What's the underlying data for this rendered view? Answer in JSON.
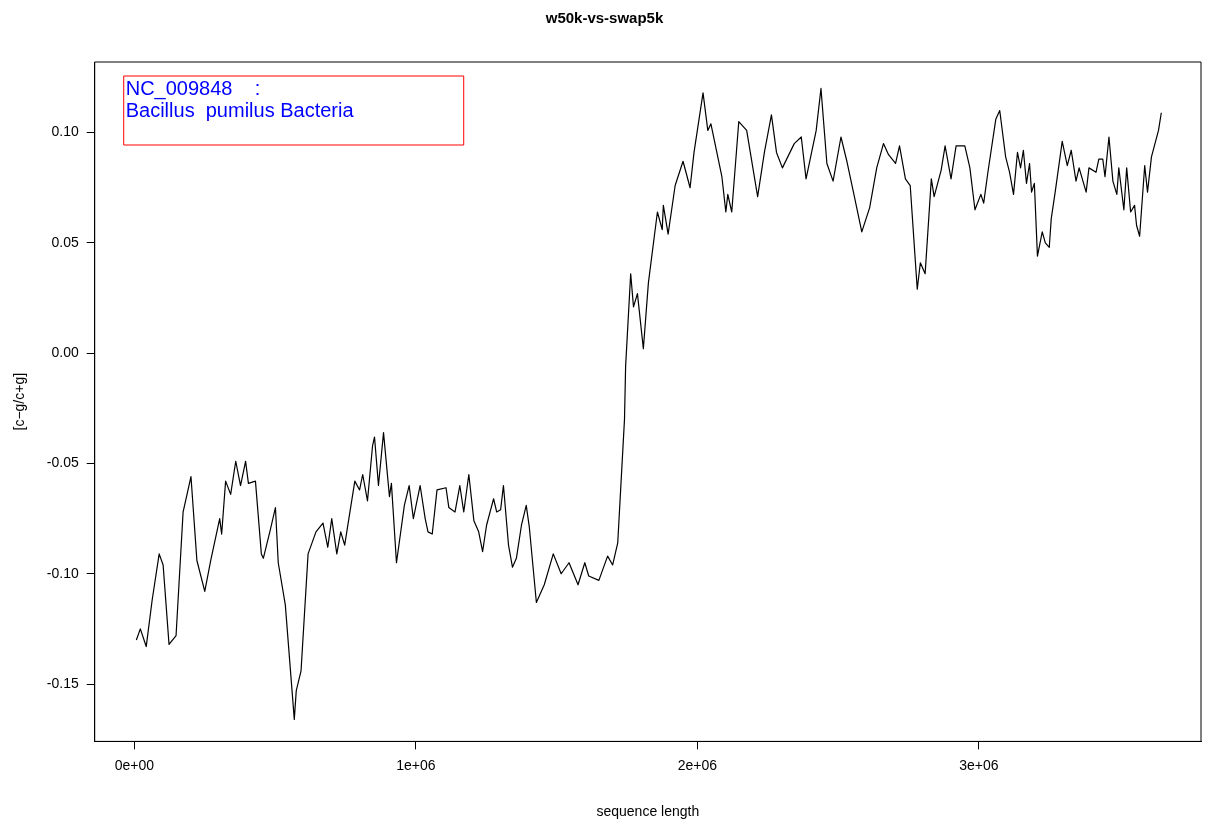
{
  "chart_data": {
    "type": "line",
    "title": "w50k-vs-swap5k",
    "xlabel": "sequence length",
    "ylabel": "[c−g/c+g]",
    "annotations": [
      "NC_009848    :",
      "Bacillus  pumilus Bacteria"
    ],
    "xlim": [
      -141000,
      3789000
    ],
    "ylim": [
      -0.176,
      0.132
    ],
    "xticks": [
      {
        "value": 0,
        "label": "0e+00"
      },
      {
        "value": 1000000,
        "label": "1e+06"
      },
      {
        "value": 2000000,
        "label": "2e+06"
      },
      {
        "value": 3000000,
        "label": "3e+06"
      }
    ],
    "yticks": [
      {
        "value": -0.15,
        "label": "-0.15"
      },
      {
        "value": -0.1,
        "label": "-0.10"
      },
      {
        "value": -0.05,
        "label": "-0.05"
      },
      {
        "value": 0,
        "label": "0.00"
      },
      {
        "value": 0.05,
        "label": "0.05"
      },
      {
        "value": 0.1,
        "label": "0.10"
      }
    ],
    "grid": false,
    "legend": false,
    "marker": "none",
    "line_style": "solid",
    "series": [
      {
        "color": "#000000",
        "x": [
          7000,
          21000,
          42000,
          63000,
          88000,
          102000,
          123000,
          148000,
          173000,
          201000,
          222000,
          250000,
          271000,
          303000,
          310000,
          324000,
          342000,
          360000,
          377000,
          395000,
          405000,
          430000,
          451000,
          458000,
          483000,
          501000,
          511000,
          536000,
          568000,
          575000,
          592000,
          617000,
          645000,
          670000,
          687000,
          701000,
          719000,
          733000,
          747000,
          783000,
          800000,
          811000,
          828000,
          846000,
          853000,
          867000,
          885000,
          906000,
          913000,
          931000,
          959000,
          976000,
          991000,
          1015000,
          1033000,
          1043000,
          1058000,
          1075000,
          1107000,
          1117000,
          1139000,
          1156000,
          1170000,
          1188000,
          1206000,
          1223000,
          1237000,
          1251000,
          1276000,
          1287000,
          1301000,
          1311000,
          1329000,
          1343000,
          1357000,
          1375000,
          1392000,
          1403000,
          1428000,
          1456000,
          1488000,
          1516000,
          1544000,
          1576000,
          1600000,
          1614000,
          1650000,
          1681000,
          1699000,
          1717000,
          1741000,
          1745000,
          1763000,
          1773000,
          1787000,
          1808000,
          1826000,
          1858000,
          1875000,
          1879000,
          1896000,
          1921000,
          1949000,
          1974000,
          1988000,
          2020000,
          2037000,
          2048000,
          2087000,
          2101000,
          2108000,
          2122000,
          2147000,
          2175000,
          2214000,
          2238000,
          2263000,
          2281000,
          2302000,
          2344000,
          2369000,
          2386000,
          2422000,
          2439000,
          2460000,
          2482000,
          2510000,
          2531000,
          2556000,
          2584000,
          2612000,
          2637000,
          2661000,
          2679000,
          2704000,
          2718000,
          2739000,
          2756000,
          2781000,
          2792000,
          2809000,
          2831000,
          2841000,
          2866000,
          2880000,
          2901000,
          2919000,
          2950000,
          2968000,
          2986000,
          3007000,
          3017000,
          3032000,
          3060000,
          3074000,
          3095000,
          3109000,
          3123000,
          3137000,
          3148000,
          3158000,
          3169000,
          3180000,
          3187000,
          3197000,
          3208000,
          3225000,
          3236000,
          3250000,
          3257000,
          3271000,
          3296000,
          3314000,
          3328000,
          3345000,
          3356000,
          3381000,
          3391000,
          3416000,
          3426000,
          3440000,
          3448000,
          3462000,
          3476000,
          3490000,
          3497000,
          3515000,
          3525000,
          3539000,
          3553000,
          3560000,
          3571000,
          3589000,
          3599000,
          3613000,
          3638000,
          3648000
        ],
        "values": [
          -0.13,
          -0.125,
          -0.133,
          -0.112,
          -0.091,
          -0.096,
          -0.132,
          -0.128,
          -0.072,
          -0.056,
          -0.094,
          -0.108,
          -0.094,
          -0.075,
          -0.082,
          -0.058,
          -0.064,
          -0.049,
          -0.06,
          -0.049,
          -0.059,
          -0.058,
          -0.091,
          -0.093,
          -0.08,
          -0.07,
          -0.095,
          -0.114,
          -0.166,
          -0.153,
          -0.144,
          -0.091,
          -0.081,
          -0.077,
          -0.088,
          -0.075,
          -0.091,
          -0.081,
          -0.087,
          -0.058,
          -0.062,
          -0.055,
          -0.067,
          -0.042,
          -0.038,
          -0.06,
          -0.036,
          -0.065,
          -0.059,
          -0.095,
          -0.069,
          -0.06,
          -0.075,
          -0.06,
          -0.075,
          -0.081,
          -0.082,
          -0.062,
          -0.061,
          -0.07,
          -0.072,
          -0.06,
          -0.072,
          -0.055,
          -0.076,
          -0.081,
          -0.09,
          -0.078,
          -0.066,
          -0.072,
          -0.071,
          -0.06,
          -0.087,
          -0.097,
          -0.093,
          -0.078,
          -0.069,
          -0.079,
          -0.113,
          -0.105,
          -0.091,
          -0.1,
          -0.095,
          -0.105,
          -0.095,
          -0.101,
          -0.103,
          -0.092,
          -0.096,
          -0.086,
          -0.03,
          -0.006,
          0.036,
          0.021,
          0.027,
          0.002,
          0.032,
          0.064,
          0.056,
          0.067,
          0.054,
          0.076,
          0.087,
          0.075,
          0.091,
          0.118,
          0.101,
          0.104,
          0.08,
          0.064,
          0.072,
          0.064,
          0.105,
          0.101,
          0.071,
          0.091,
          0.108,
          0.091,
          0.084,
          0.095,
          0.098,
          0.079,
          0.101,
          0.12,
          0.086,
          0.078,
          0.098,
          0.087,
          0.072,
          0.055,
          0.066,
          0.084,
          0.095,
          0.09,
          0.086,
          0.094,
          0.079,
          0.076,
          0.029,
          0.041,
          0.036,
          0.079,
          0.071,
          0.083,
          0.094,
          0.079,
          0.094,
          0.094,
          0.084,
          0.065,
          0.072,
          0.068,
          0.082,
          0.106,
          0.11,
          0.089,
          0.082,
          0.072,
          0.091,
          0.084,
          0.092,
          0.077,
          0.086,
          0.073,
          0.077,
          0.044,
          0.055,
          0.05,
          0.048,
          0.061,
          0.073,
          0.096,
          0.085,
          0.092,
          0.078,
          0.084,
          0.073,
          0.084,
          0.082,
          0.088,
          0.088,
          0.08,
          0.098,
          0.078,
          0.072,
          0.084,
          0.065,
          0.084,
          0.064,
          0.067,
          0.058,
          0.053,
          0.085,
          0.073,
          0.089,
          0.101,
          0.109
        ]
      }
    ]
  }
}
